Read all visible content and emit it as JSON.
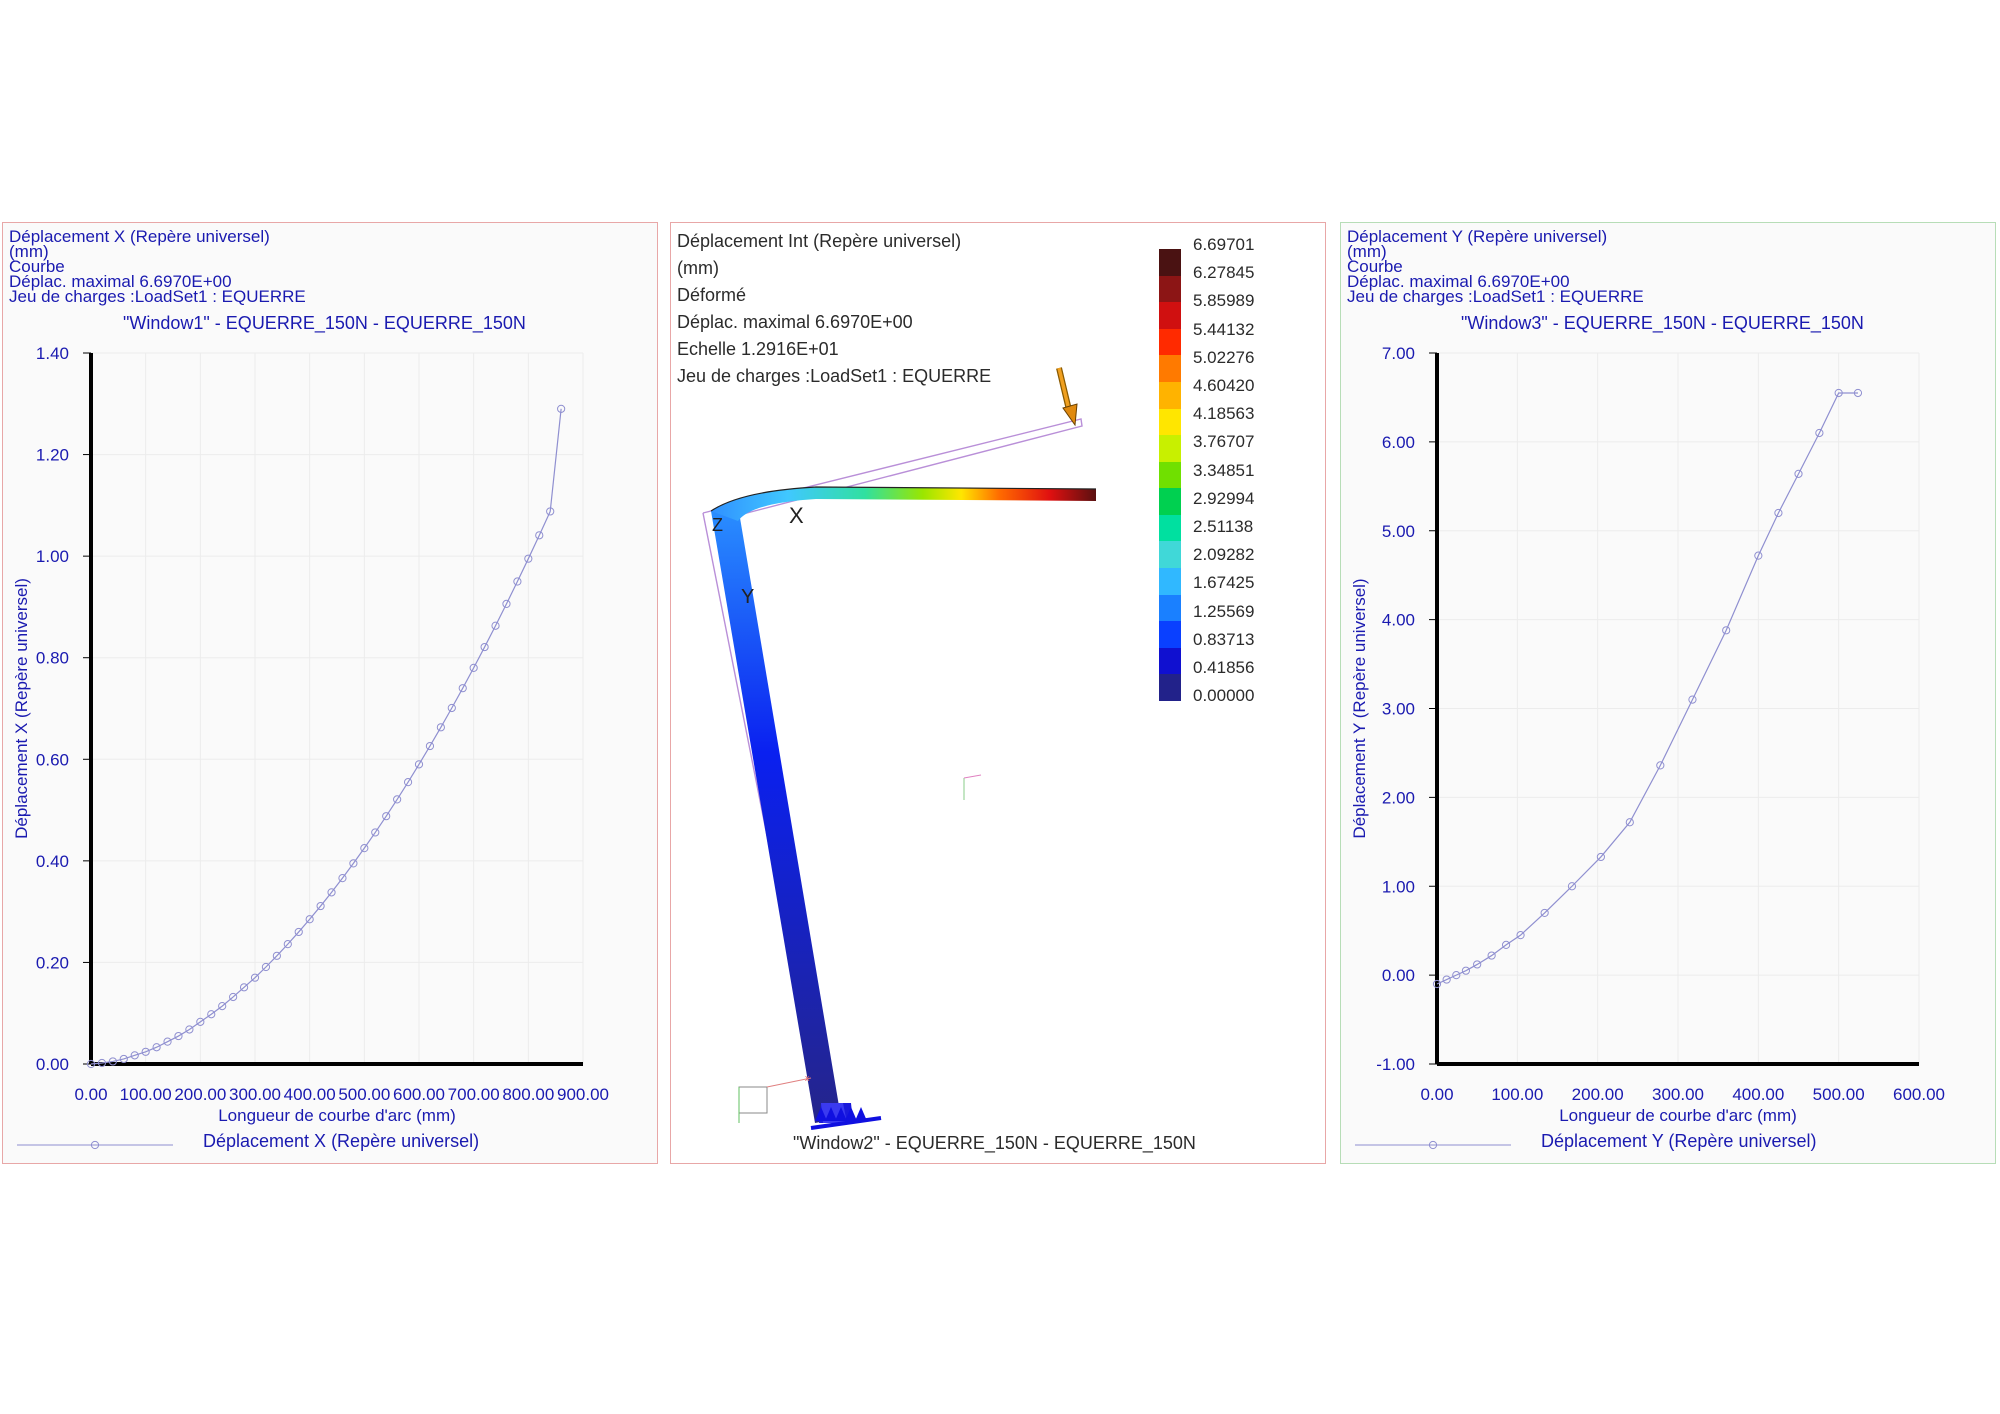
{
  "panel1": {
    "header": [
      "Déplacement X (Repère universel)",
      "(mm)",
      "Courbe",
      "Déplac. maximal  6.6970E+00",
      "Jeu de charges :LoadSet1 :  EQUERRE"
    ],
    "title": "\"Window1\" - EQUERRE_150N - EQUERRE_150N",
    "legend": "Déplacement X (Repère universel)"
  },
  "panel2": {
    "header": [
      "Déplacement Int (Repère universel)",
      "(mm)",
      "Déformé",
      "Déplac. maximal  6.6970E+00",
      "Echelle  1.2916E+01",
      "Jeu de charges :LoadSet1 :  EQUERRE"
    ],
    "footer": "\"Window2\" - EQUERRE_150N - EQUERRE_150N",
    "colorbar": {
      "values": [
        "6.69701",
        "6.27845",
        "5.85989",
        "5.44132",
        "5.02276",
        "4.60420",
        "4.18563",
        "3.76707",
        "3.34851",
        "2.92994",
        "2.51138",
        "2.09282",
        "1.67425",
        "1.25569",
        "0.83713",
        "0.41856",
        "0.00000"
      ],
      "colors": [
        "#4a1212",
        "#8c1515",
        "#d01010",
        "#ff2a00",
        "#ff7a00",
        "#ffb300",
        "#ffe600",
        "#c8f000",
        "#70e000",
        "#00d050",
        "#00e0a0",
        "#40d8d8",
        "#30b8ff",
        "#1a80ff",
        "#0a40ff",
        "#1010d0",
        "#22228a"
      ]
    }
  },
  "panel3": {
    "header": [
      "Déplacement Y (Repère universel)",
      "(mm)",
      "Courbe",
      "Déplac. maximal  6.6970E+00",
      "Jeu de charges :LoadSet1 :  EQUERRE"
    ],
    "title": "\"Window3\" - EQUERRE_150N - EQUERRE_150N",
    "legend": "Déplacement Y (Repère universel)"
  },
  "colors": {
    "text": "#1a1ab0",
    "curve": "#8f8fd0",
    "axis": "#000000"
  },
  "chart_data": [
    {
      "type": "line",
      "title": "\"Window1\" - EQUERRE_150N - EQUERRE_150N",
      "xlabel": "Longueur de courbe d'arc (mm)",
      "ylabel": "Déplacement X (Repère universel)",
      "xlim": [
        0,
        900
      ],
      "ylim": [
        0,
        1.4
      ],
      "xticks": [
        "0.00",
        "100.00",
        "200.00",
        "300.00",
        "400.00",
        "500.00",
        "600.00",
        "700.00",
        "800.00",
        "900.00"
      ],
      "yticks": [
        "0.00",
        "0.20",
        "0.40",
        "0.60",
        "0.80",
        "1.00",
        "1.20",
        "1.40"
      ],
      "grid": true,
      "series": [
        {
          "name": "Déplacement X (Repère universel)",
          "x": [
            0,
            20,
            40,
            60,
            80,
            100,
            120,
            140,
            160,
            180,
            200,
            220,
            240,
            260,
            280,
            300,
            320,
            340,
            360,
            380,
            400,
            420,
            440,
            460,
            480,
            500,
            520,
            540,
            560,
            580,
            600,
            620,
            640,
            660,
            680,
            700,
            720,
            740,
            760,
            780,
            800,
            820,
            840,
            860
          ],
          "y": [
            0,
            0.002,
            0.005,
            0.01,
            0.017,
            0.024,
            0.033,
            0.044,
            0.055,
            0.068,
            0.083,
            0.098,
            0.114,
            0.132,
            0.151,
            0.17,
            0.191,
            0.213,
            0.236,
            0.26,
            0.285,
            0.311,
            0.338,
            0.366,
            0.395,
            0.425,
            0.456,
            0.488,
            0.521,
            0.555,
            0.59,
            0.626,
            0.663,
            0.701,
            0.74,
            0.78,
            0.821,
            0.863,
            0.906,
            0.95,
            0.995,
            1.041,
            1.088,
            1.29
          ]
        }
      ]
    },
    {
      "type": "line",
      "title": "\"Window3\" - EQUERRE_150N - EQUERRE_150N",
      "xlabel": "Longueur de courbe d'arc (mm)",
      "ylabel": "Déplacement Y (Repère universel)",
      "xlim": [
        0,
        600
      ],
      "ylim": [
        -1,
        7
      ],
      "xticks": [
        "0.00",
        "100.00",
        "200.00",
        "300.00",
        "400.00",
        "500.00",
        "600.00"
      ],
      "yticks": [
        "-1.00",
        "0.00",
        "1.00",
        "2.00",
        "3.00",
        "4.00",
        "5.00",
        "6.00",
        "7.00"
      ],
      "grid": true,
      "series": [
        {
          "name": "Déplacement Y (Repère universel)",
          "x": [
            0,
            12,
            24,
            36,
            50,
            68,
            86,
            104,
            134,
            168,
            204,
            240,
            278,
            318,
            360,
            400,
            425,
            450,
            476,
            500,
            524
          ],
          "y": [
            -0.1,
            -0.05,
            0.0,
            0.05,
            0.12,
            0.22,
            0.34,
            0.45,
            0.7,
            1.0,
            1.33,
            1.72,
            2.36,
            3.1,
            3.88,
            4.72,
            5.2,
            5.64,
            6.1,
            6.55,
            6.55
          ]
        }
      ]
    }
  ]
}
